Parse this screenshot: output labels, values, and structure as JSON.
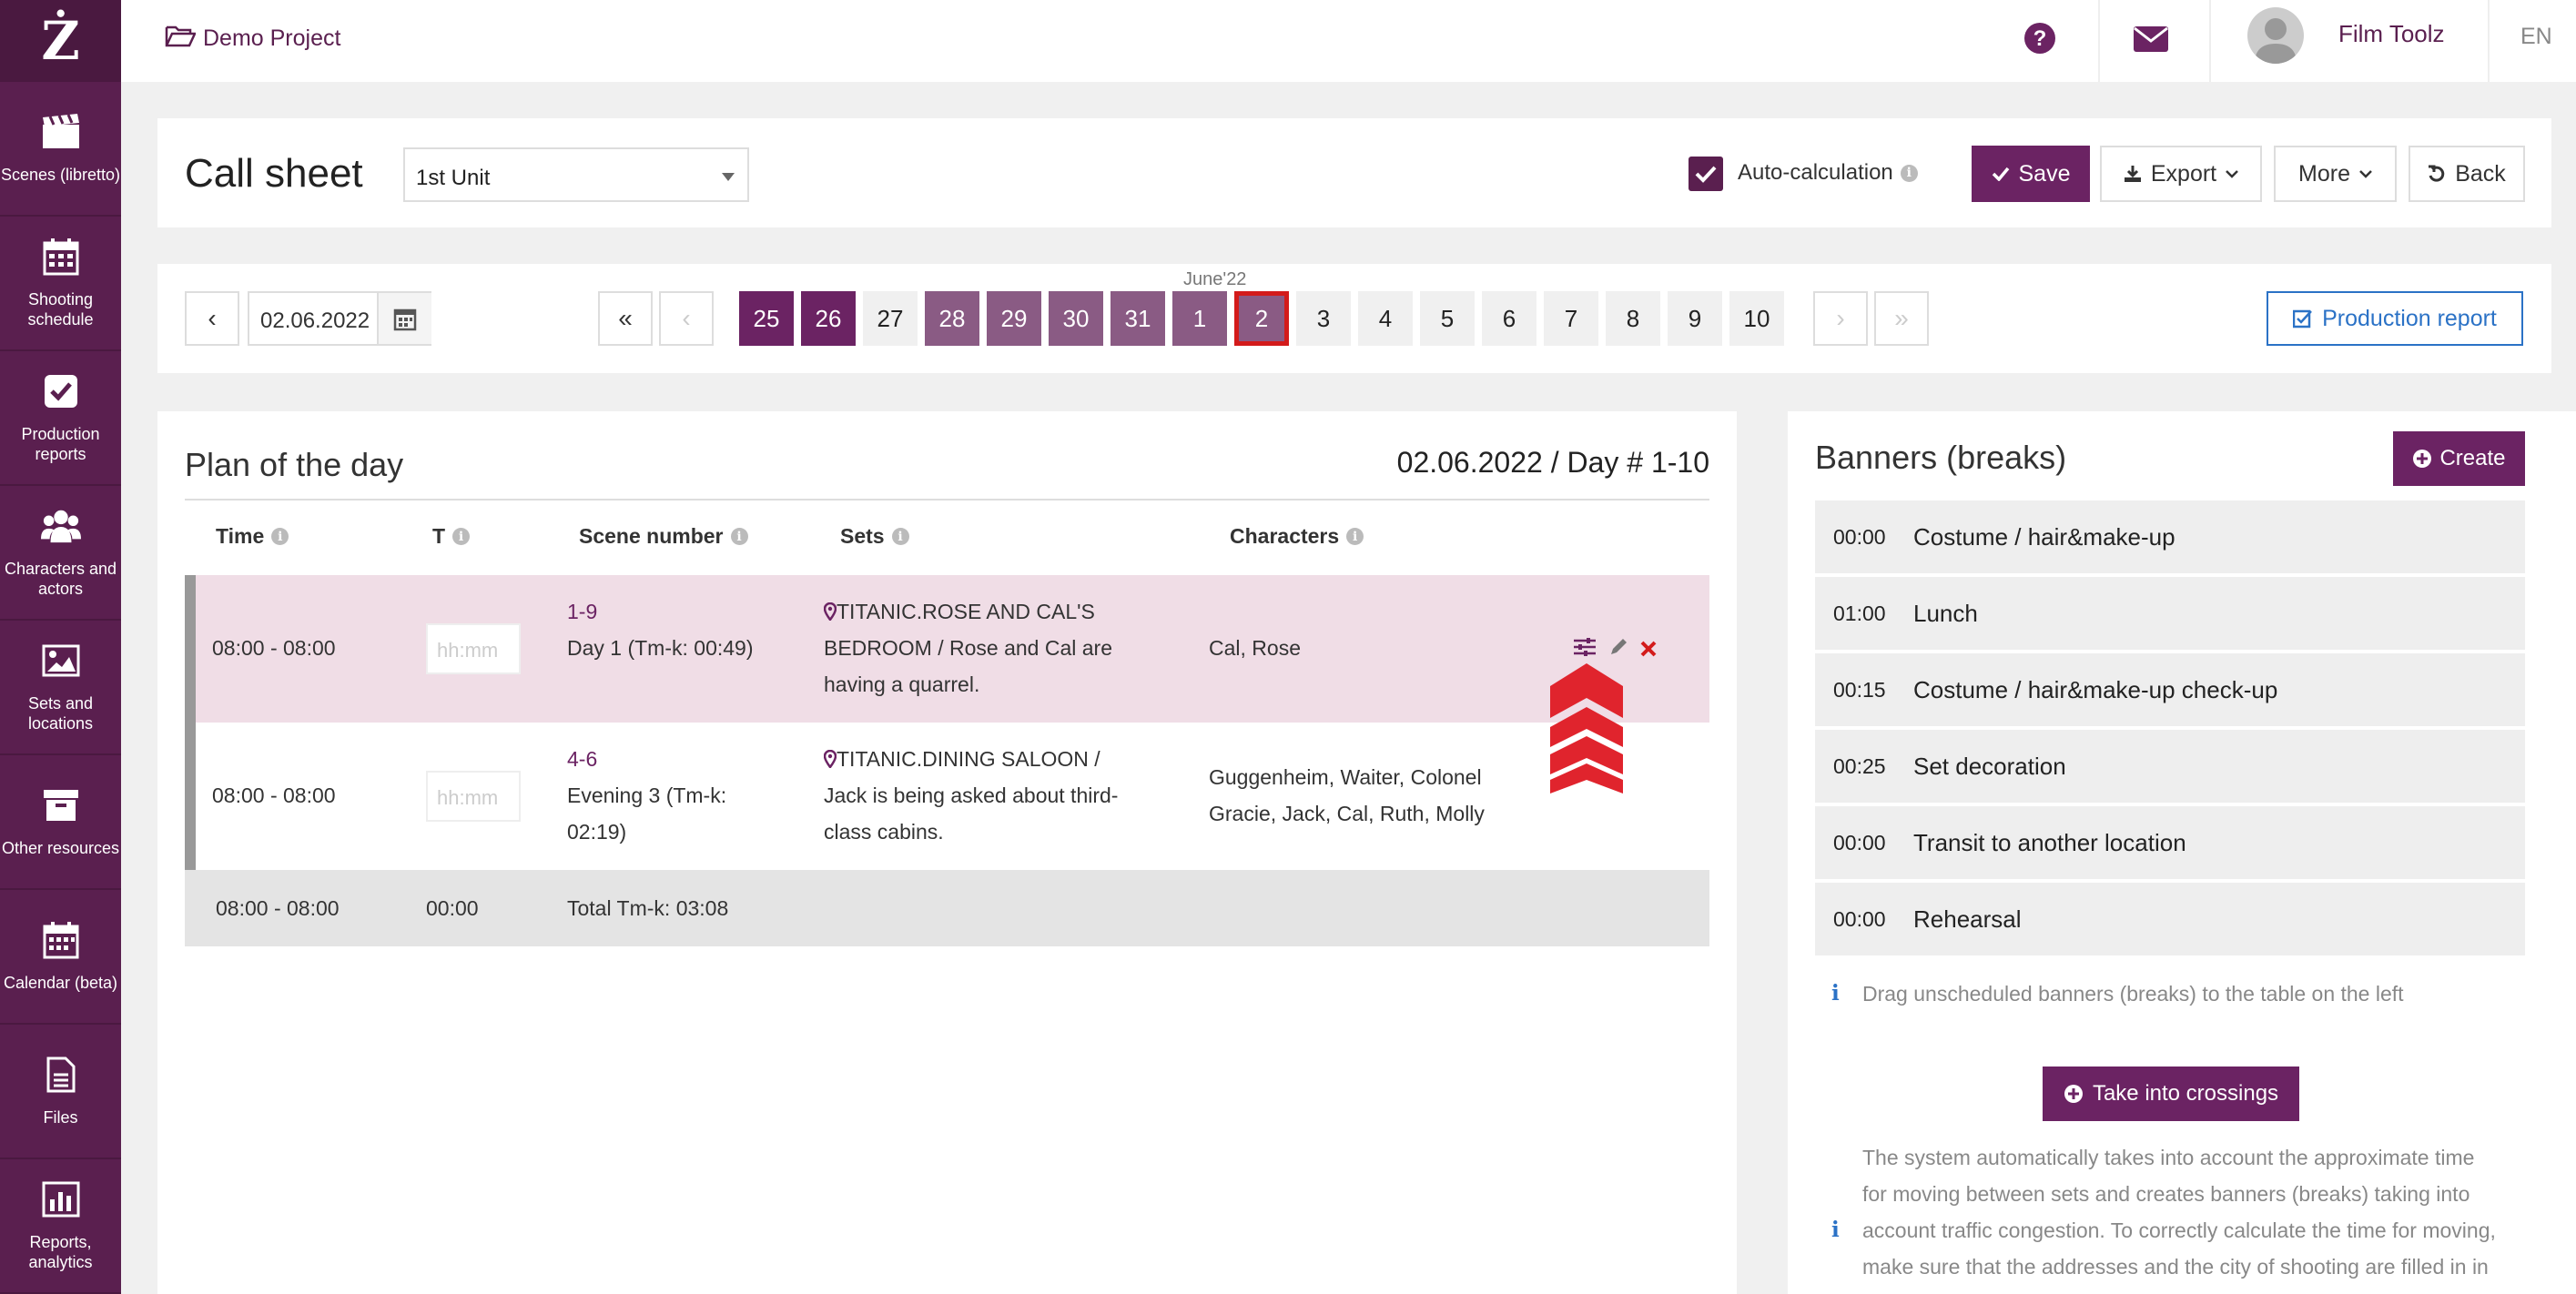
{
  "project": {
    "name": "Demo Project"
  },
  "user": {
    "name": "Film Toolz",
    "lang": "EN"
  },
  "sidebar": {
    "items": [
      {
        "label": "Scenes (libretto)",
        "icon": "clapperboard-icon"
      },
      {
        "label": "Shooting schedule",
        "icon": "schedule-grid-icon"
      },
      {
        "label": "Production reports",
        "icon": "checkbox-icon"
      },
      {
        "label": "Characters and actors",
        "icon": "users-icon"
      },
      {
        "label": "Sets and locations",
        "icon": "image-icon"
      },
      {
        "label": "Other resources",
        "icon": "archive-icon"
      },
      {
        "label": "Calendar (beta)",
        "icon": "calendar-icon"
      },
      {
        "label": "Files",
        "icon": "file-icon"
      },
      {
        "label": "Reports, analytics",
        "icon": "bar-chart-icon"
      }
    ]
  },
  "header": {
    "title": "Call sheet",
    "unit": "1st Unit",
    "auto_calc": "Auto-calculation",
    "save": "Save",
    "export": "Export",
    "more": "More",
    "back": "Back"
  },
  "datebar": {
    "date": "02.06.2022",
    "month_label": "June'22",
    "days": [
      "25",
      "26",
      "27",
      "28",
      "29",
      "30",
      "31",
      "1",
      "2",
      "3",
      "4",
      "5",
      "6",
      "7",
      "8",
      "9",
      "10"
    ],
    "production_report": "Production report"
  },
  "plan": {
    "title": "Plan of the day",
    "date_label": "02.06.2022 / Day # 1-10",
    "columns": [
      "Time",
      "T",
      "Scene number",
      "Sets",
      "Characters"
    ],
    "time_placeholder": "hh:mm",
    "rows": [
      {
        "time": "08:00 - 08:00",
        "scene_no": "1-9",
        "scene_desc": "Day 1 (Tm-k: 00:49)",
        "set_line1": "TITANIC.ROSE AND CAL'S",
        "set_line2": "BEDROOM / Rose and Cal are",
        "set_line3": "having a quarrel.",
        "characters": "Cal, Rose"
      },
      {
        "time": "08:00 - 08:00",
        "scene_no": "4-6",
        "scene_desc1": "Evening 3 (Tm-k:",
        "scene_desc2": "02:19)",
        "set_line1": "TITANIC.DINING SALOON /",
        "set_line2": "Jack is being asked about third-",
        "set_line3": "class cabins.",
        "characters_line1": "Guggenheim, Waiter, Colonel",
        "characters_line2": "Gracie, Jack, Cal, Ruth, Molly"
      }
    ],
    "total": {
      "time": "08:00 - 08:00",
      "t": "00:00",
      "label": "Total Tm-k: 03:08"
    }
  },
  "banners": {
    "title": "Banners (breaks)",
    "create": "Create",
    "items": [
      {
        "time": "00:00",
        "label": "Costume / hair&make-up"
      },
      {
        "time": "01:00",
        "label": "Lunch"
      },
      {
        "time": "00:15",
        "label": "Costume / hair&make-up check-up"
      },
      {
        "time": "00:25",
        "label": "Set decoration"
      },
      {
        "time": "00:00",
        "label": "Transit to another location"
      },
      {
        "time": "00:00",
        "label": "Rehearsal"
      }
    ],
    "drag_hint": "Drag unscheduled banners (breaks) to the table on the left",
    "take_crossings": "Take into crossings",
    "auto_hint": [
      "The system automatically takes into account the approximate time",
      "for moving between sets and creates banners (breaks) taking into",
      "account traffic congestion. To correctly calculate the time for moving,",
      "make sure that the addresses and the city of shooting are filled in in"
    ]
  },
  "colors": {
    "brand": "#5a1f4f",
    "accent": "#6b2363",
    "selected_border": "#d31b1b",
    "link": "#2b72c6",
    "row_highlight": "#f0dde6"
  }
}
